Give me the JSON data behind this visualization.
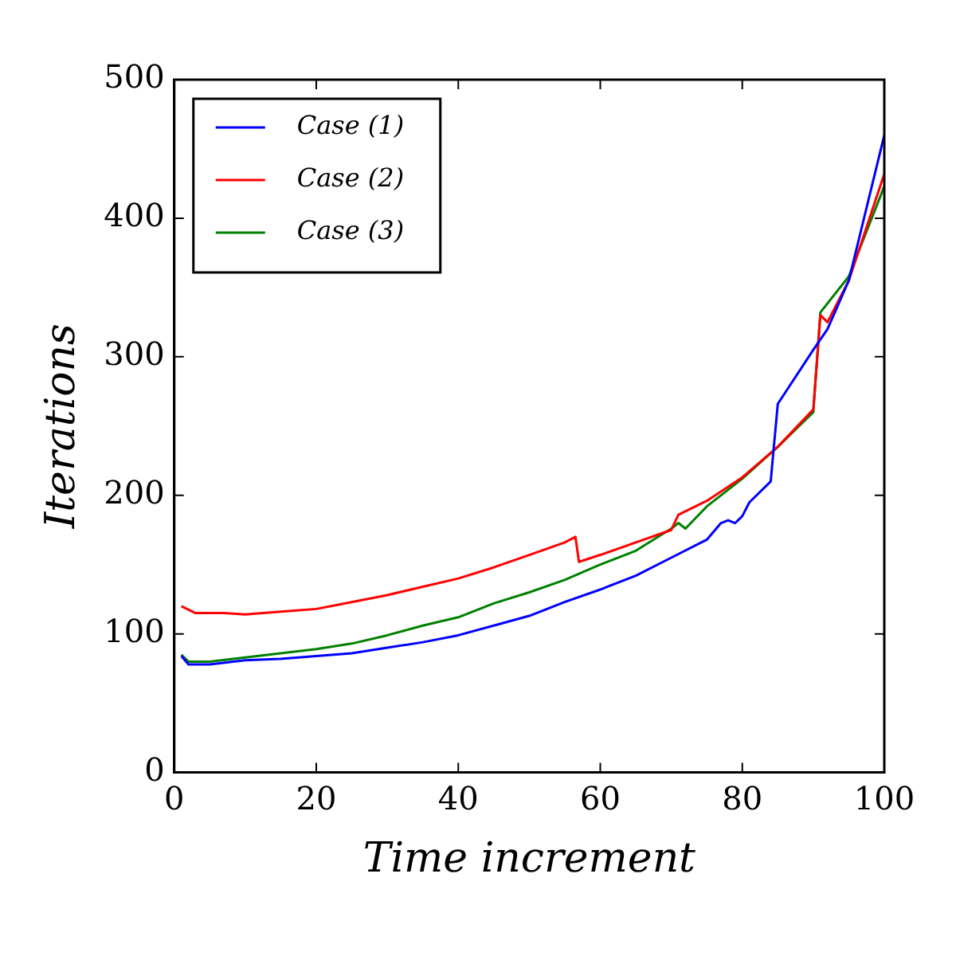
{
  "chart_data": {
    "type": "line",
    "xlabel": "Time increment",
    "ylabel": "Iterations",
    "xlim": [
      0,
      100
    ],
    "xticks": [
      0,
      20,
      40,
      60,
      80,
      100
    ],
    "ylim": [
      0,
      500
    ],
    "yticks": [
      0,
      100,
      200,
      300,
      400,
      500
    ],
    "grid": false,
    "legend": "top left",
    "marker": "none",
    "line_style": "solid",
    "series": [
      {
        "name": "Case (1)",
        "color": "#0000ff",
        "x": [
          1,
          2,
          5,
          10,
          15,
          20,
          25,
          30,
          35,
          40,
          45,
          50,
          55,
          60,
          65,
          70,
          75,
          77,
          78,
          79,
          80,
          81,
          84,
          85,
          90,
          92,
          95,
          100
        ],
        "values": [
          84,
          78,
          78,
          81,
          82,
          84,
          86,
          90,
          94,
          99,
          106,
          113,
          123,
          132,
          142,
          155,
          168,
          180,
          182,
          180,
          185,
          195,
          210,
          266,
          305,
          320,
          355,
          460
        ]
      },
      {
        "name": "Case (2)",
        "color": "#ff0000",
        "x": [
          1,
          3,
          7,
          10,
          15,
          20,
          25,
          30,
          35,
          40,
          45,
          50,
          55,
          56.5,
          57,
          60,
          65,
          70,
          71,
          75,
          80,
          85,
          90,
          91,
          92,
          95,
          100
        ],
        "values": [
          120,
          115,
          115,
          114,
          116,
          118,
          123,
          128,
          134,
          140,
          148,
          157,
          166,
          170,
          152,
          157,
          166,
          175,
          186,
          196,
          213,
          235,
          262,
          330,
          325,
          355,
          432
        ]
      },
      {
        "name": "Case (3)",
        "color": "#008000",
        "x": [
          1,
          2,
          5,
          10,
          15,
          20,
          25,
          30,
          35,
          40,
          45,
          50,
          55,
          60,
          65,
          70,
          71,
          72,
          75,
          80,
          85,
          90,
          91,
          95,
          100
        ],
        "values": [
          85,
          80,
          80,
          83,
          86,
          89,
          93,
          99,
          106,
          112,
          122,
          130,
          139,
          150,
          160,
          176,
          180,
          176,
          192,
          212,
          235,
          260,
          332,
          358,
          423
        ]
      }
    ]
  }
}
